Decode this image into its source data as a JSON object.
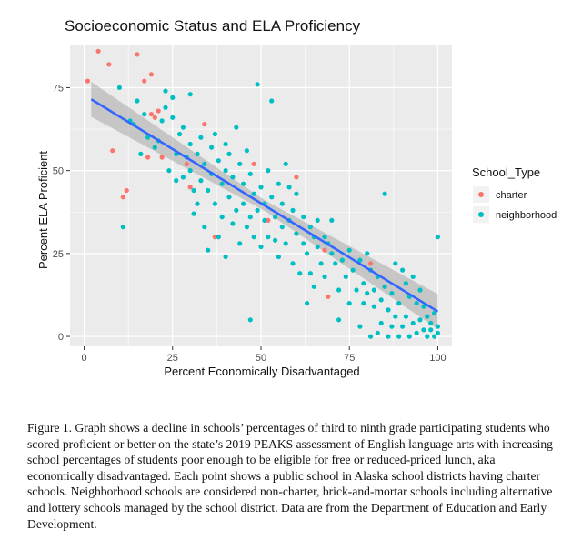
{
  "chart_data": {
    "type": "scatter",
    "title": "Socioeconomic Status and ELA Proficiency",
    "xlabel": "Percent Economically Disadvantaged",
    "ylabel": "Percent ELA Proficient",
    "xlim": [
      -4,
      104
    ],
    "ylim": [
      -3,
      88
    ],
    "x_ticks": [
      "0",
      "25",
      "50",
      "75",
      "100"
    ],
    "y_ticks": [
      "0",
      "25",
      "50",
      "75"
    ],
    "grid": true,
    "legend_title": "School_Type",
    "legend_position": "right",
    "colors": {
      "charter": "#F8766D",
      "neighborhood": "#00BFC4",
      "fit_line": "#3366FF",
      "ribbon": "#999999",
      "panel": "#EBEBEB",
      "grid": "#FFFFFF"
    },
    "series": [
      {
        "name": "charter",
        "points": [
          [
            1,
            77
          ],
          [
            4,
            86
          ],
          [
            7,
            82
          ],
          [
            8,
            56
          ],
          [
            11,
            42
          ],
          [
            12,
            44
          ],
          [
            15,
            85
          ],
          [
            17,
            77
          ],
          [
            18,
            54
          ],
          [
            19,
            67
          ],
          [
            19,
            79
          ],
          [
            20,
            66
          ],
          [
            21,
            68
          ],
          [
            22,
            54
          ],
          [
            29,
            52
          ],
          [
            30,
            45
          ],
          [
            34,
            64
          ],
          [
            37,
            30
          ],
          [
            48,
            52
          ],
          [
            52,
            35
          ],
          [
            60,
            48
          ],
          [
            68,
            26
          ],
          [
            69,
            12
          ],
          [
            81,
            22
          ]
        ]
      },
      {
        "name": "neighborhood",
        "points": [
          [
            10,
            75
          ],
          [
            11,
            33
          ],
          [
            13,
            65
          ],
          [
            14,
            64
          ],
          [
            15,
            71
          ],
          [
            16,
            55
          ],
          [
            17,
            67
          ],
          [
            18,
            60
          ],
          [
            20,
            57
          ],
          [
            21,
            59
          ],
          [
            22,
            65
          ],
          [
            23,
            74
          ],
          [
            23,
            69
          ],
          [
            24,
            50
          ],
          [
            25,
            72
          ],
          [
            25,
            66
          ],
          [
            26,
            47
          ],
          [
            26,
            55
          ],
          [
            27,
            61
          ],
          [
            28,
            48
          ],
          [
            28,
            63
          ],
          [
            29,
            54
          ],
          [
            30,
            73
          ],
          [
            30,
            58
          ],
          [
            30,
            50
          ],
          [
            31,
            44
          ],
          [
            31,
            37
          ],
          [
            32,
            55
          ],
          [
            32,
            40
          ],
          [
            33,
            60
          ],
          [
            33,
            47
          ],
          [
            34,
            52
          ],
          [
            34,
            33
          ],
          [
            35,
            44
          ],
          [
            35,
            26
          ],
          [
            36,
            57
          ],
          [
            36,
            49
          ],
          [
            37,
            40
          ],
          [
            37,
            61
          ],
          [
            38,
            53
          ],
          [
            38,
            30
          ],
          [
            39,
            46
          ],
          [
            39,
            36
          ],
          [
            40,
            58
          ],
          [
            40,
            50
          ],
          [
            40,
            24
          ],
          [
            41,
            42
          ],
          [
            41,
            55
          ],
          [
            42,
            48
          ],
          [
            42,
            34
          ],
          [
            43,
            63
          ],
          [
            43,
            38
          ],
          [
            44,
            52
          ],
          [
            44,
            28
          ],
          [
            45,
            46
          ],
          [
            45,
            40
          ],
          [
            46,
            56
          ],
          [
            46,
            33
          ],
          [
            47,
            49
          ],
          [
            47,
            36
          ],
          [
            47,
            5
          ],
          [
            48,
            43
          ],
          [
            48,
            30
          ],
          [
            49,
            76
          ],
          [
            49,
            38
          ],
          [
            50,
            45
          ],
          [
            50,
            27
          ],
          [
            51,
            40
          ],
          [
            51,
            35
          ],
          [
            52,
            30
          ],
          [
            52,
            50
          ],
          [
            53,
            71
          ],
          [
            53,
            42
          ],
          [
            54,
            29
          ],
          [
            54,
            36
          ],
          [
            55,
            46
          ],
          [
            55,
            24
          ],
          [
            56,
            40
          ],
          [
            56,
            33
          ],
          [
            57,
            52
          ],
          [
            57,
            28
          ],
          [
            58,
            45
          ],
          [
            58,
            35
          ],
          [
            59,
            22
          ],
          [
            59,
            38
          ],
          [
            60,
            31
          ],
          [
            60,
            43
          ],
          [
            61,
            19
          ],
          [
            62,
            28
          ],
          [
            62,
            36
          ],
          [
            63,
            25
          ],
          [
            63,
            10
          ],
          [
            64,
            33
          ],
          [
            64,
            19
          ],
          [
            65,
            30
          ],
          [
            65,
            15
          ],
          [
            66,
            27
          ],
          [
            66,
            35
          ],
          [
            67,
            22
          ],
          [
            68,
            18
          ],
          [
            68,
            30
          ],
          [
            69,
            28
          ],
          [
            70,
            25
          ],
          [
            70,
            35
          ],
          [
            71,
            22
          ],
          [
            72,
            14
          ],
          [
            72,
            5
          ],
          [
            73,
            23
          ],
          [
            74,
            18
          ],
          [
            75,
            26
          ],
          [
            75,
            10
          ],
          [
            76,
            20
          ],
          [
            77,
            14
          ],
          [
            78,
            23
          ],
          [
            78,
            3
          ],
          [
            79,
            16
          ],
          [
            79,
            10
          ],
          [
            80,
            25
          ],
          [
            80,
            13
          ],
          [
            81,
            20
          ],
          [
            81,
            0
          ],
          [
            82,
            9
          ],
          [
            82,
            14
          ],
          [
            83,
            18
          ],
          [
            83,
            1
          ],
          [
            84,
            11
          ],
          [
            84,
            4
          ],
          [
            85,
            15
          ],
          [
            85,
            43
          ],
          [
            86,
            8
          ],
          [
            86,
            0
          ],
          [
            87,
            13
          ],
          [
            87,
            3
          ],
          [
            88,
            22
          ],
          [
            88,
            6
          ],
          [
            89,
            10
          ],
          [
            89,
            0
          ],
          [
            90,
            20
          ],
          [
            90,
            3
          ],
          [
            91,
            16
          ],
          [
            91,
            6
          ],
          [
            92,
            12
          ],
          [
            92,
            0
          ],
          [
            93,
            18
          ],
          [
            93,
            4
          ],
          [
            94,
            10
          ],
          [
            94,
            1
          ],
          [
            95,
            14
          ],
          [
            95,
            5
          ],
          [
            96,
            9
          ],
          [
            96,
            2
          ],
          [
            97,
            6
          ],
          [
            97,
            0
          ],
          [
            98,
            4
          ],
          [
            98,
            2
          ],
          [
            99,
            7
          ],
          [
            99,
            0
          ],
          [
            100,
            3
          ],
          [
            100,
            30
          ],
          [
            100,
            1
          ]
        ]
      }
    ],
    "fit_line": {
      "x0": 2,
      "y0": 71.5,
      "x1": 100,
      "y1": 7.5
    }
  },
  "caption": "Figure 1. Graph shows a decline in schools’ percentages of third to ninth grade participating students who scored proficient or better on the state’s 2019 PEAKS assessment of English language arts with increasing school percentages of students poor enough to be eligible for free or reduced-priced lunch, aka economically disadvantaged. Each point shows a public school in Alaska school districts having charter schools. Neighborhood schools are considered non-charter, brick-and-mortar schools including alternative and lottery schools managed by the school district. Data are from the Department of Education and Early Development."
}
